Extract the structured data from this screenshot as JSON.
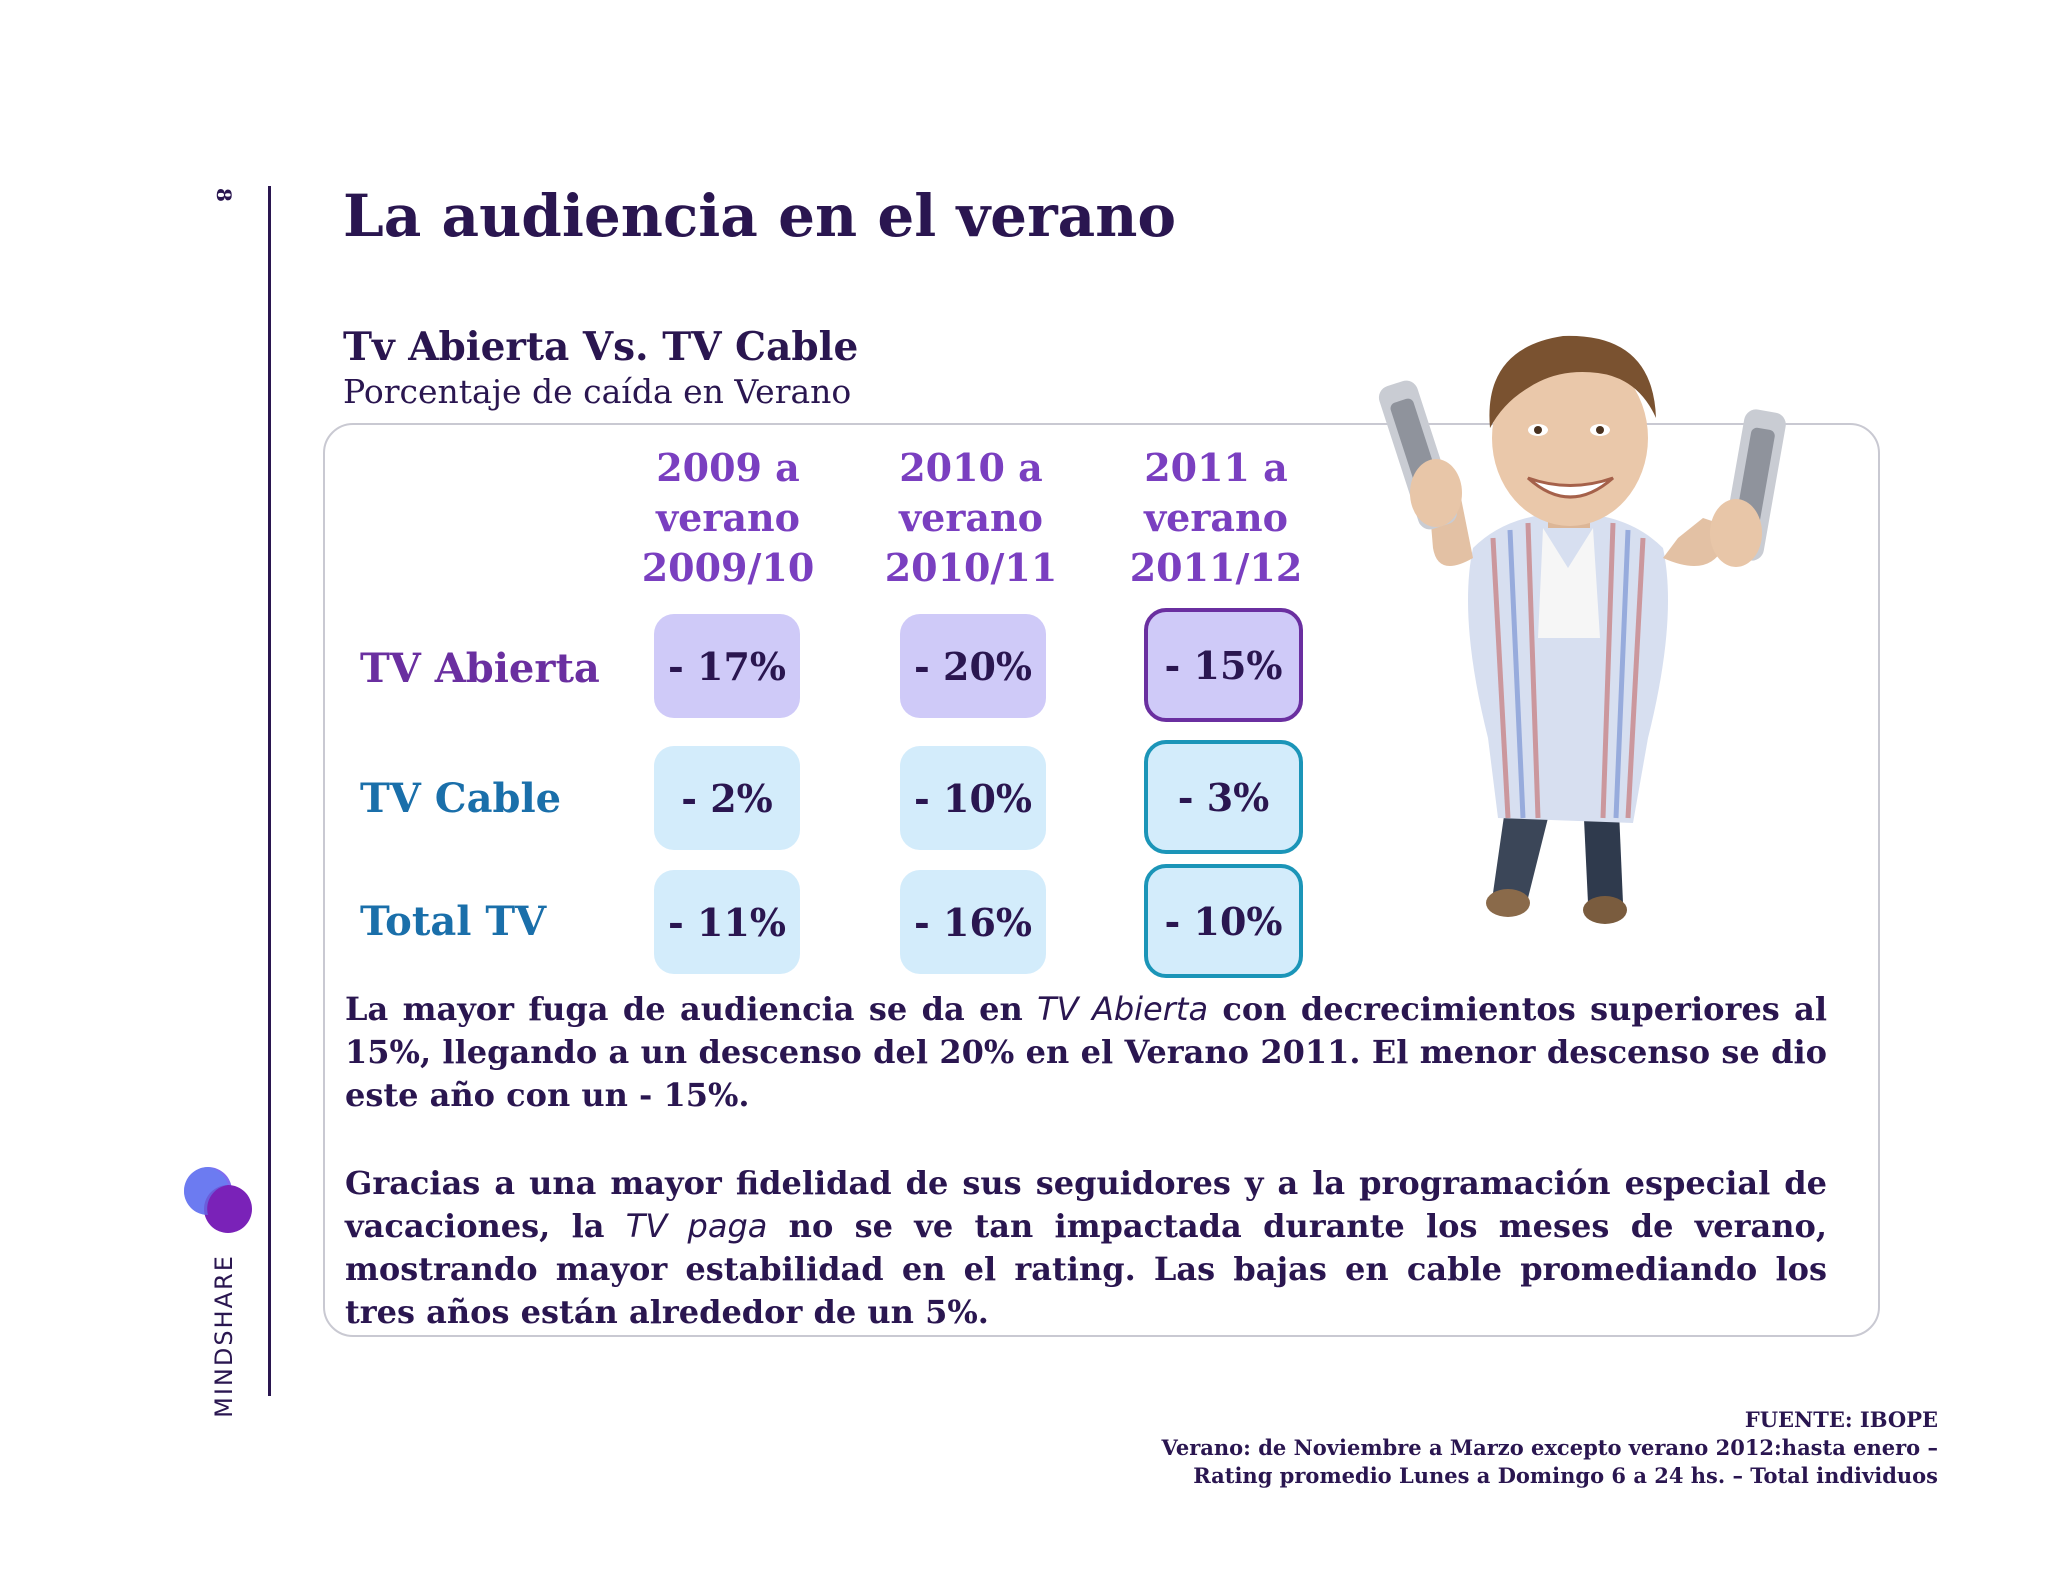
{
  "page_number": "8",
  "brand": "MINDSHARE",
  "title": "La audiencia en el verano",
  "section": {
    "title": "Tv Abierta Vs. TV Cable",
    "subtitle": "Porcentaje de caída en Verano"
  },
  "table": {
    "columns": [
      {
        "line1": "2009 a",
        "line2": "verano",
        "line3": "2009/10"
      },
      {
        "line1": "2010 a",
        "line2": "verano",
        "line3": "2010/11"
      },
      {
        "line1": "2011 a",
        "line2": "verano",
        "line3": "2011/12"
      }
    ],
    "rows": [
      {
        "label": "TV Abierta",
        "values": [
          "- 17%",
          "- 20%",
          "- 15%"
        ]
      },
      {
        "label": "TV Cable",
        "values": [
          "- 2%",
          "- 10%",
          "- 3%"
        ]
      },
      {
        "label": "Total TV",
        "values": [
          "- 11%",
          "- 16%",
          "- 10%"
        ]
      }
    ]
  },
  "paragraph1": {
    "before": "La mayor fuga de audiencia se da en ",
    "italic": "TV Abierta",
    "after": " con decrecimientos superiores al 15%,  llegando a un descenso del 20% en el Verano 2011. El menor descenso se dio este año con un - 15%."
  },
  "paragraph2": {
    "before": "Gracias a una mayor fidelidad de sus seguidores y a la programación especial de vacaciones, la ",
    "italic": "TV paga",
    "after": " no se ve tan impactada durante los meses de verano, mostrando mayor estabilidad en el rating. Las bajas en cable promediando los tres años están alrededor de un 5%."
  },
  "source": {
    "line1": "FUENTE: IBOPE",
    "line2": "Verano: de Noviembre a Marzo excepto verano 2012:hasta enero –",
    "line3": "Rating promedio Lunes a Domingo 6 a 24 hs. – Total individuos"
  },
  "colors": {
    "navy": "#2a1650",
    "purple_label": "#6a2fa0",
    "blue_label": "#1a6faa",
    "purple_cell": "#cfcaf8",
    "blue_cell": "#d3ecfb"
  }
}
